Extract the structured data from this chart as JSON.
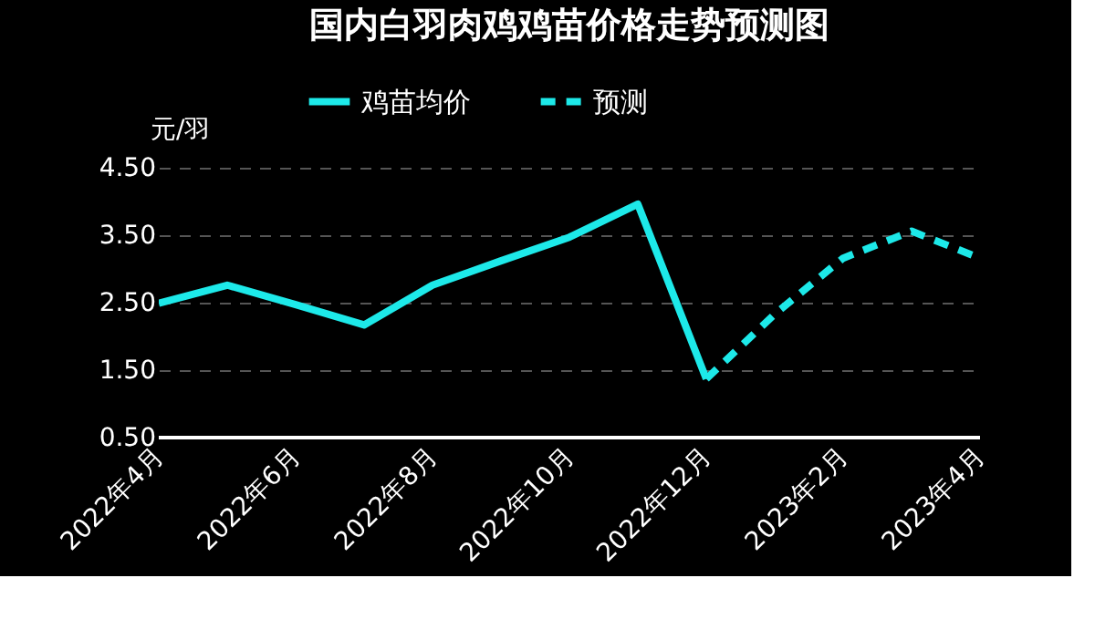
{
  "chart_data": {
    "type": "line",
    "title": "国内白羽肉鸡鸡苗价格走势预测图",
    "ylabel": "元/羽",
    "categories": [
      "2022年4月",
      null,
      "2022年6月",
      null,
      "2022年8月",
      null,
      "2022年10月",
      null,
      "2022年12月",
      null,
      "2023年2月",
      null,
      "2023年4月"
    ],
    "series": [
      {
        "name": "鸡苗均价",
        "color": "#1de9e9",
        "line_style": "solid",
        "values": [
          2.49,
          2.76,
          2.47,
          2.17,
          2.76,
          3.12,
          3.47,
          3.96,
          1.37,
          null,
          null,
          null,
          null
        ]
      },
      {
        "name": "预测",
        "color": "#1de9e9",
        "line_style": "dashed",
        "values": [
          null,
          null,
          null,
          null,
          null,
          null,
          null,
          null,
          1.37,
          2.33,
          3.16,
          3.56,
          3.16
        ]
      }
    ],
    "ylim": [
      0.5,
      4.5
    ],
    "yticks": [
      {
        "value": 0.5,
        "label": "0.50"
      },
      {
        "value": 1.5,
        "label": "1.50"
      },
      {
        "value": 2.5,
        "label": "2.50"
      },
      {
        "value": 3.5,
        "label": "3.50"
      },
      {
        "value": 4.5,
        "label": "4.50"
      }
    ],
    "grid": "y",
    "legend": "top",
    "marker": "none"
  }
}
